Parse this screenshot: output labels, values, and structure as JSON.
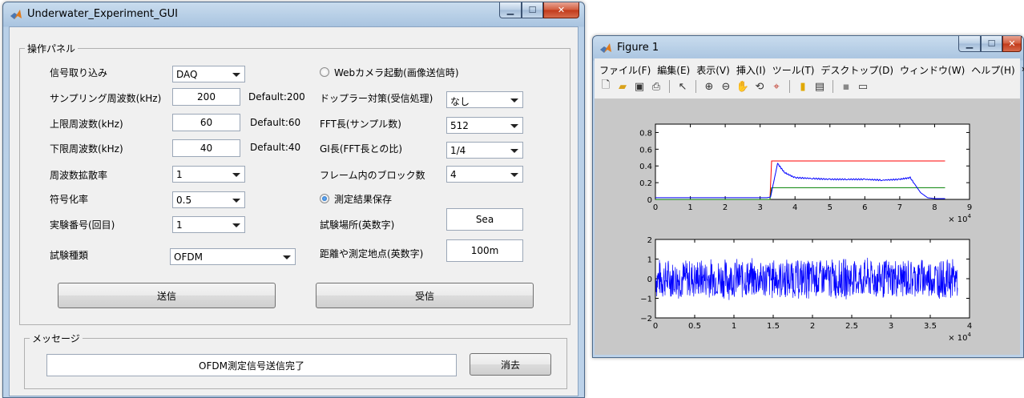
{
  "gui": {
    "title": "Underwater_Experiment_GUI",
    "panel_title": "操作パネル",
    "left_rows": [
      {
        "label": "信号取り込み",
        "kind": "combo",
        "value": "DAQ"
      },
      {
        "label": "サンプリング周波数(kHz)",
        "kind": "edit",
        "value": "200",
        "default": "Default:200"
      },
      {
        "label": "上限周波数(kHz)",
        "kind": "edit",
        "value": "60",
        "default": "Default:60"
      },
      {
        "label": "下限周波数(kHz)",
        "kind": "edit",
        "value": "40",
        "default": "Default:40"
      },
      {
        "label": "周波数拡散率",
        "kind": "combo",
        "value": "1"
      },
      {
        "label": "符号化率",
        "kind": "combo",
        "value": "0.5"
      },
      {
        "label": "実験番号(回目)",
        "kind": "combo",
        "value": "1"
      },
      {
        "label": "試験種類",
        "kind": "combo",
        "value": "OFDM"
      }
    ],
    "webcam_radio": {
      "label": "Webカメラ起動(画像送信時)",
      "checked": false
    },
    "right_rows": [
      {
        "label": "ドップラー対策(受信処理)",
        "value": "なし"
      },
      {
        "label": "FFT長(サンプル数)",
        "value": "512"
      },
      {
        "label": "GI長(FFT長との比)",
        "value": "1/4"
      },
      {
        "label": "フレーム内のブロック数",
        "value": "4"
      }
    ],
    "save_radio": {
      "label": "測定結果保存",
      "checked": true
    },
    "location": {
      "label": "試験場所(英数字)",
      "value": "Sea"
    },
    "distance": {
      "label": "距離や測定地点(英数字)",
      "value": "100m"
    },
    "send_button": "送信",
    "receive_button": "受信",
    "message_group": "メッセージ",
    "message_text": "OFDM測定信号送信完了",
    "clear_button": "消去"
  },
  "figure": {
    "title": "Figure 1",
    "menu": [
      "ファイル(F)",
      "編集(E)",
      "表示(V)",
      "挿入(I)",
      "ツール(T)",
      "デスクトップ(D)",
      "ウィンドウ(W)",
      "ヘルプ(H)"
    ],
    "toolbar_icons": [
      "new-file-icon",
      "open-folder-icon",
      "save-icon",
      "print-icon",
      "pointer-icon",
      "zoom-in-icon",
      "zoom-out-icon",
      "pan-hand-icon",
      "rotate-3d-icon",
      "data-cursor-icon",
      "colorbar-icon",
      "legend-icon",
      "hide-plot-tools-icon",
      "show-plot-tools-icon"
    ]
  },
  "chart_data": [
    {
      "type": "line",
      "x_exponent_label": "× 10^4",
      "xticks": [
        "0",
        "1",
        "2",
        "3",
        "4",
        "5",
        "6",
        "7",
        "8",
        "9"
      ],
      "yticks": [
        "0",
        "0.2",
        "0.4",
        "0.6",
        "0.8"
      ],
      "xlim": [
        0,
        9
      ],
      "ylim": [
        0,
        0.9
      ],
      "series": [
        {
          "color": "#ff0000",
          "x": [
            0,
            3.28,
            3.33,
            8.3
          ],
          "y": [
            0,
            0,
            0.46,
            0.46
          ]
        },
        {
          "color": "#008000",
          "x": [
            0,
            3.28,
            3.33,
            8.3
          ],
          "y": [
            0,
            0,
            0.14,
            0.14
          ]
        },
        {
          "color": "#0000ff",
          "x": [
            0,
            3.2,
            3.3,
            3.5,
            3.7,
            4.0,
            4.5,
            5.0,
            5.5,
            6.0,
            6.5,
            7.0,
            7.3,
            7.6,
            7.8,
            8.0,
            8.3
          ],
          "y": [
            0.02,
            0.02,
            0.03,
            0.43,
            0.32,
            0.26,
            0.25,
            0.24,
            0.24,
            0.24,
            0.23,
            0.24,
            0.26,
            0.08,
            0.02,
            0.01,
            0.01
          ]
        }
      ]
    },
    {
      "type": "line",
      "x_exponent_label": "× 10^4",
      "xticks": [
        "0",
        "0.5",
        "1",
        "1.5",
        "2",
        "2.5",
        "3",
        "3.5",
        "4"
      ],
      "yticks": [
        "-2",
        "-1",
        "0",
        "1",
        "2"
      ],
      "xlim": [
        0,
        4
      ],
      "ylim": [
        -2,
        2
      ],
      "series": [
        {
          "color": "#0000ff",
          "description_amplitude": 1.1,
          "x_end": 3.85
        }
      ]
    }
  ]
}
